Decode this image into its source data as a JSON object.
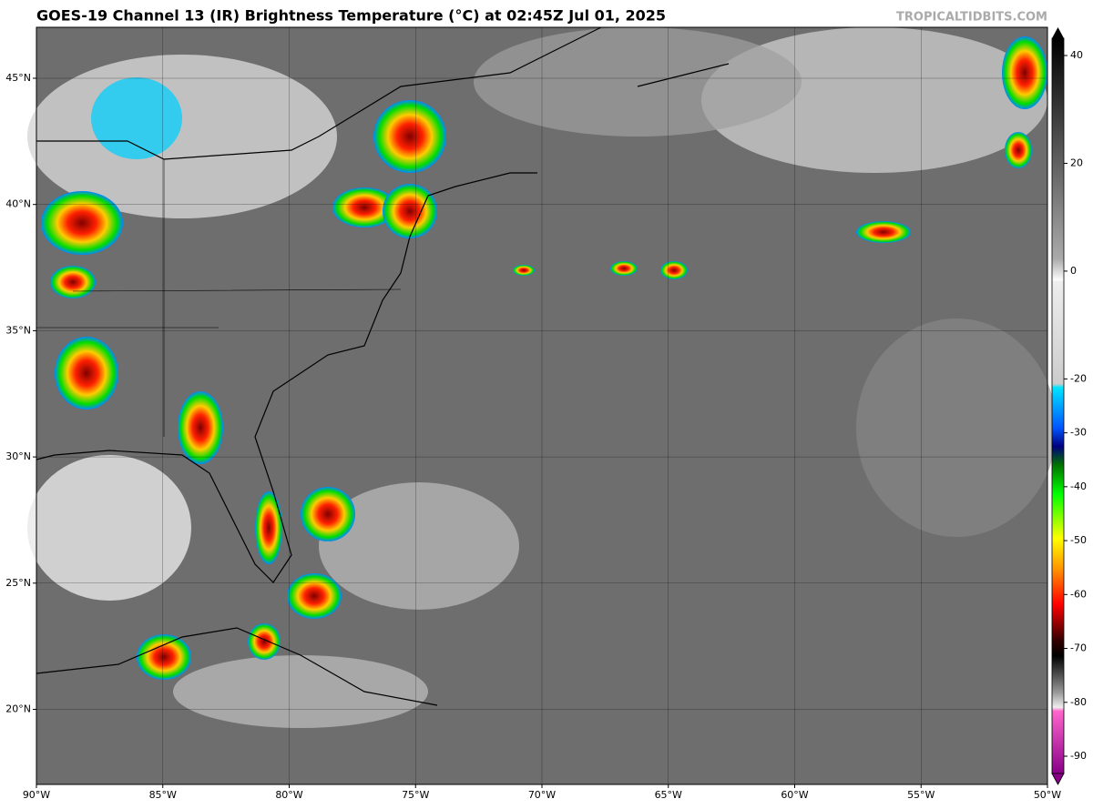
{
  "header": {
    "title": "GOES-19 Channel 13 (IR) Brightness Temperature (°C) at 02:45Z Jul 01, 2025",
    "watermark": "TROPICALTIDBITS.COM"
  },
  "map": {
    "lon_labels": [
      "90°W",
      "85°W",
      "80°W",
      "75°W",
      "70°W",
      "65°W",
      "60°W",
      "55°W",
      "50°W"
    ],
    "lat_labels": [
      "45°N",
      "40°N",
      "35°N",
      "30°N",
      "25°N",
      "20°N"
    ]
  },
  "colorbar": {
    "ticks": [
      40,
      20,
      0,
      -20,
      -30,
      -40,
      -50,
      -60,
      -70,
      -80,
      -90
    ]
  }
}
